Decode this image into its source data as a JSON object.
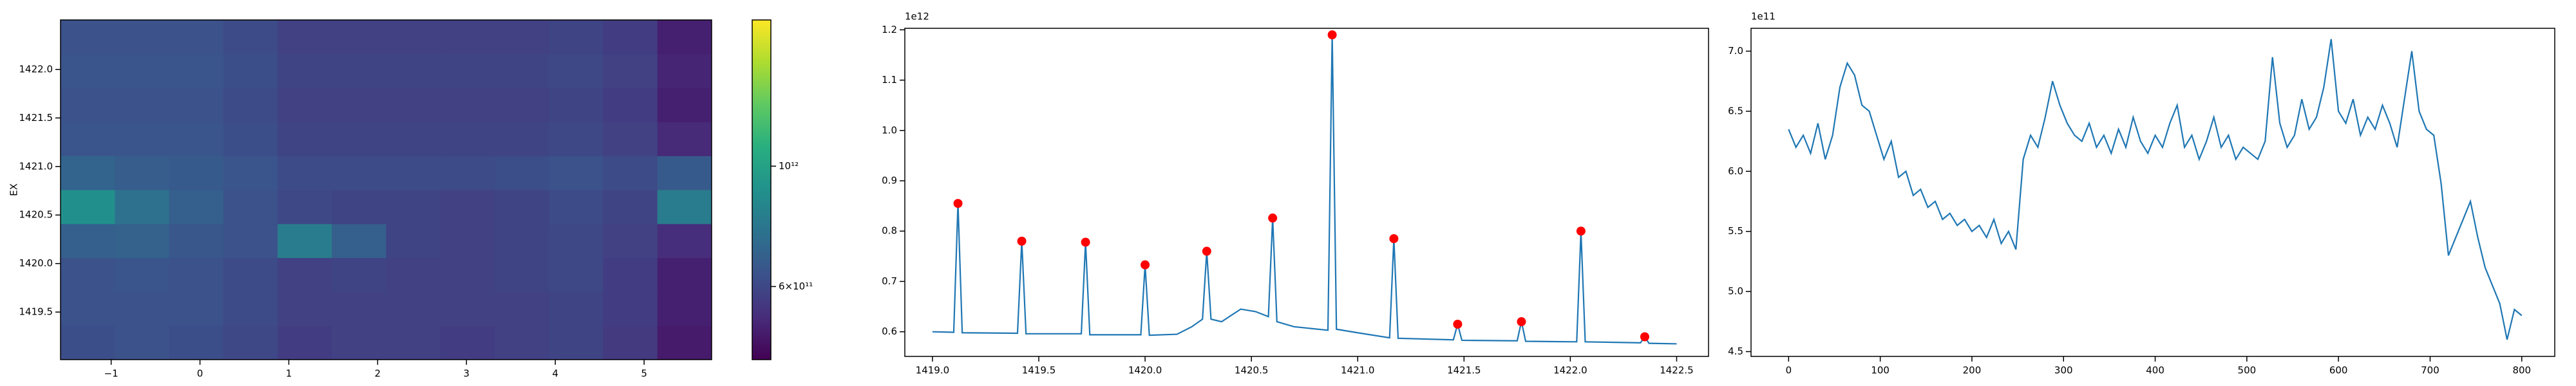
{
  "chart_data": [
    {
      "type": "heatmap",
      "ylabel": "EX",
      "xlim": [
        -1.57,
        5.76
      ],
      "ylim": [
        1419.01,
        1422.51
      ],
      "xticks": [
        {
          "value": -1,
          "label": "−1"
        },
        0,
        1,
        2,
        3,
        4,
        5
      ],
      "yticks": [
        1419.5,
        {
          "value": 1420,
          "label": "1420.0"
        },
        1420.5,
        {
          "value": 1421,
          "label": "1421.0"
        },
        1421.5,
        {
          "value": 1422,
          "label": "1422.0"
        }
      ],
      "xbins": [
        -1.57,
        -0.959,
        -0.348,
        0.263,
        0.873,
        1.484,
        2.095,
        2.706,
        3.317,
        3.928,
        4.538,
        5.149,
        5.76
      ],
      "ybins": [
        1419.01,
        1419.36,
        1419.71,
        1420.06,
        1420.41,
        1420.76,
        1421.11,
        1421.46,
        1421.81,
        1422.16,
        1422.51
      ],
      "values": [
        [
          620000000000.0,
          630000000000.0,
          620000000000.0,
          600000000000.0,
          570000000000.0,
          580000000000.0,
          580000000000.0,
          570000000000.0,
          580000000000.0,
          590000000000.0,
          560000000000.0,
          490000000000.0
        ],
        [
          630000000000.0,
          630000000000.0,
          630000000000.0,
          610000000000.0,
          580000000000.0,
          580000000000.0,
          580000000000.0,
          580000000000.0,
          580000000000.0,
          590000000000.0,
          570000000000.0,
          500000000000.0
        ],
        [
          630000000000.0,
          640000000000.0,
          630000000000.0,
          610000000000.0,
          580000000000.0,
          590000000000.0,
          580000000000.0,
          580000000000.0,
          590000000000.0,
          600000000000.0,
          570000000000.0,
          500000000000.0
        ],
        [
          680000000000.0,
          690000000000.0,
          650000000000.0,
          630000000000.0,
          800000000000.0,
          680000000000.0,
          590000000000.0,
          580000000000.0,
          590000000000.0,
          600000000000.0,
          580000000000.0,
          530000000000.0
        ],
        [
          900000000000.0,
          750000000000.0,
          680000000000.0,
          630000000000.0,
          600000000000.0,
          590000000000.0,
          590000000000.0,
          580000000000.0,
          590000000000.0,
          610000000000.0,
          590000000000.0,
          800000000000.0
        ],
        [
          700000000000.0,
          670000000000.0,
          660000000000.0,
          640000000000.0,
          610000000000.0,
          610000000000.0,
          610000000000.0,
          610000000000.0,
          620000000000.0,
          630000000000.0,
          610000000000.0,
          660000000000.0
        ],
        [
          640000000000.0,
          640000000000.0,
          640000000000.0,
          620000000000.0,
          590000000000.0,
          590000000000.0,
          590000000000.0,
          590000000000.0,
          590000000000.0,
          600000000000.0,
          580000000000.0,
          520000000000.0
        ],
        [
          630000000000.0,
          630000000000.0,
          630000000000.0,
          610000000000.0,
          580000000000.0,
          580000000000.0,
          580000000000.0,
          580000000000.0,
          580000000000.0,
          590000000000.0,
          570000000000.0,
          500000000000.0
        ],
        [
          640000000000.0,
          640000000000.0,
          640000000000.0,
          620000000000.0,
          590000000000.0,
          590000000000.0,
          590000000000.0,
          590000000000.0,
          590000000000.0,
          600000000000.0,
          580000000000.0,
          510000000000.0
        ],
        [
          630000000000.0,
          630000000000.0,
          630000000000.0,
          610000000000.0,
          580000000000.0,
          580000000000.0,
          580000000000.0,
          580000000000.0,
          580000000000.0,
          590000000000.0,
          570000000000.0,
          500000000000.0
        ]
      ],
      "colormap": "viridis",
      "color_scale": "log",
      "clim": [
        440000000000.0,
        1860000000000.0
      ],
      "cticks": [
        {
          "value": 600000000000.0,
          "label": "6×10¹¹"
        },
        {
          "value": 1000000000000.0,
          "label": "10¹²"
        }
      ]
    },
    {
      "type": "line",
      "offset_label": "1e12",
      "xlim": [
        1418.87,
        1422.65
      ],
      "ylim": [
        0.551,
        1.203
      ],
      "xticks": [
        {
          "value": 1419,
          "label": "1419.0"
        },
        1419.5,
        {
          "value": 1420,
          "label": "1420.0"
        },
        1420.5,
        {
          "value": 1421,
          "label": "1421.0"
        },
        1421.5,
        {
          "value": 1422,
          "label": "1422.0"
        },
        1422.5
      ],
      "yticks": [
        0.6,
        0.7,
        0.8,
        0.9,
        {
          "value": 1,
          "label": "1.0"
        },
        1.1,
        1.2
      ],
      "series": [
        {
          "style": "line",
          "color": "#1f77b4",
          "x": [
            1419.0,
            1419.1,
            1419.12,
            1419.14,
            1419.4,
            1419.42,
            1419.44,
            1419.7,
            1419.72,
            1419.74,
            1419.98,
            1420.0,
            1420.02,
            1420.15,
            1420.22,
            1420.27,
            1420.29,
            1420.31,
            1420.36,
            1420.45,
            1420.52,
            1420.58,
            1420.6,
            1420.62,
            1420.7,
            1420.86,
            1420.88,
            1420.9,
            1421.0,
            1421.15,
            1421.17,
            1421.19,
            1421.45,
            1421.47,
            1421.49,
            1421.75,
            1421.77,
            1421.79,
            1422.03,
            1422.05,
            1422.07,
            1422.33,
            1422.35,
            1422.37,
            1422.5
          ],
          "values": [
            0.6,
            0.599,
            0.855,
            0.598,
            0.597,
            0.78,
            0.596,
            0.596,
            0.778,
            0.594,
            0.594,
            0.733,
            0.593,
            0.595,
            0.61,
            0.625,
            0.76,
            0.625,
            0.62,
            0.645,
            0.64,
            0.63,
            0.826,
            0.62,
            0.61,
            0.603,
            1.19,
            0.605,
            0.598,
            0.588,
            0.785,
            0.587,
            0.584,
            0.615,
            0.583,
            0.582,
            0.62,
            0.581,
            0.58,
            0.8,
            0.58,
            0.578,
            0.59,
            0.577,
            0.576
          ]
        },
        {
          "style": "points",
          "color": "#ff0000",
          "x": [
            1419.12,
            1419.42,
            1419.72,
            1420.0,
            1420.29,
            1420.6,
            1420.88,
            1421.17,
            1421.47,
            1421.77,
            1422.05,
            1422.35
          ],
          "values": [
            0.855,
            0.78,
            0.778,
            0.733,
            0.76,
            0.826,
            1.19,
            0.785,
            0.615,
            0.62,
            0.8,
            0.59
          ]
        }
      ]
    },
    {
      "type": "line",
      "offset_label": "1e11",
      "xlim": [
        -41,
        836
      ],
      "ylim": [
        4.46,
        7.19
      ],
      "xticks": [
        0,
        100,
        200,
        300,
        400,
        500,
        600,
        700,
        800
      ],
      "yticks": [
        4.5,
        {
          "value": 5,
          "label": "5.0"
        },
        5.5,
        {
          "value": 6,
          "label": "6.0"
        },
        6.5,
        {
          "value": 7,
          "label": "7.0"
        }
      ],
      "x": [
        0,
        8,
        16,
        24,
        32,
        40,
        48,
        56,
        64,
        72,
        80,
        88,
        96,
        104,
        112,
        120,
        128,
        136,
        144,
        152,
        160,
        168,
        176,
        184,
        192,
        200,
        208,
        216,
        224,
        232,
        240,
        248,
        256,
        264,
        272,
        280,
        288,
        296,
        304,
        312,
        320,
        328,
        336,
        344,
        352,
        360,
        368,
        376,
        384,
        392,
        400,
        408,
        416,
        424,
        432,
        440,
        448,
        456,
        464,
        472,
        480,
        488,
        496,
        504,
        512,
        520,
        528,
        536,
        544,
        552,
        560,
        568,
        576,
        584,
        592,
        600,
        608,
        616,
        624,
        632,
        640,
        648,
        656,
        664,
        672,
        680,
        688,
        696,
        704,
        712,
        720,
        728,
        736,
        744,
        752,
        760,
        768,
        776,
        784,
        792,
        800
      ],
      "series": [
        {
          "style": "line",
          "color": "#1f77b4",
          "values": [
            6.35,
            6.2,
            6.3,
            6.15,
            6.4,
            6.1,
            6.3,
            6.7,
            6.9,
            6.8,
            6.55,
            6.5,
            6.3,
            6.1,
            6.25,
            5.95,
            6.0,
            5.8,
            5.85,
            5.7,
            5.75,
            5.6,
            5.65,
            5.55,
            5.6,
            5.5,
            5.55,
            5.45,
            5.6,
            5.4,
            5.5,
            5.35,
            6.1,
            6.3,
            6.2,
            6.45,
            6.75,
            6.55,
            6.4,
            6.3,
            6.25,
            6.4,
            6.2,
            6.3,
            6.15,
            6.35,
            6.2,
            6.45,
            6.25,
            6.15,
            6.3,
            6.2,
            6.4,
            6.55,
            6.2,
            6.3,
            6.1,
            6.25,
            6.45,
            6.2,
            6.3,
            6.1,
            6.2,
            6.15,
            6.1,
            6.25,
            6.95,
            6.4,
            6.2,
            6.3,
            6.6,
            6.35,
            6.45,
            6.7,
            7.1,
            6.5,
            6.4,
            6.6,
            6.3,
            6.45,
            6.35,
            6.55,
            6.4,
            6.2,
            6.6,
            7.0,
            6.5,
            6.35,
            6.3,
            5.9,
            5.3,
            5.45,
            5.6,
            5.75,
            5.45,
            5.2,
            5.05,
            4.9,
            4.6,
            4.85,
            4.8
          ]
        }
      ]
    }
  ]
}
